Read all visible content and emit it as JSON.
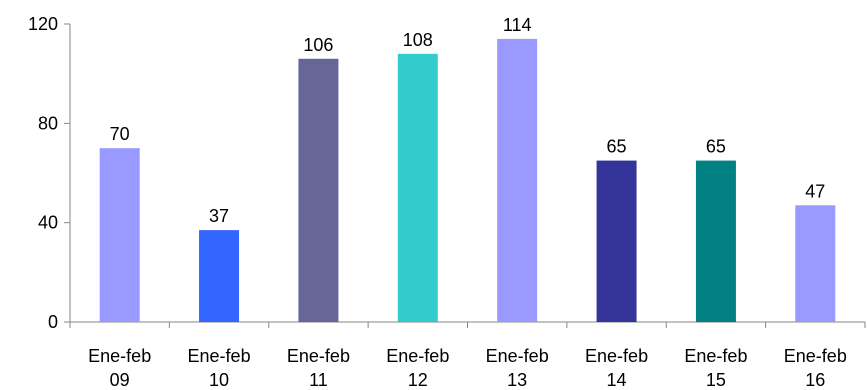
{
  "chart_data": {
    "type": "bar",
    "title": "",
    "xlabel": "",
    "ylabel": "",
    "categories": [
      [
        "Ene-feb",
        "09"
      ],
      [
        "Ene-feb",
        "10"
      ],
      [
        "Ene-feb",
        "11"
      ],
      [
        "Ene-feb",
        "12"
      ],
      [
        "Ene-feb",
        "13"
      ],
      [
        "Ene-feb",
        "14"
      ],
      [
        "Ene-feb",
        "15"
      ],
      [
        "Ene-feb",
        "16"
      ]
    ],
    "values": [
      70,
      37,
      106,
      108,
      114,
      65,
      65,
      47
    ],
    "bar_colors": [
      "#9999ff",
      "#3366ff",
      "#666699",
      "#33cccc",
      "#9999ff",
      "#333399",
      "#008080",
      "#9999ff"
    ],
    "ylim": [
      0,
      120
    ],
    "yticks": [
      0,
      40,
      80,
      120
    ],
    "grid": false,
    "legend": "none"
  }
}
